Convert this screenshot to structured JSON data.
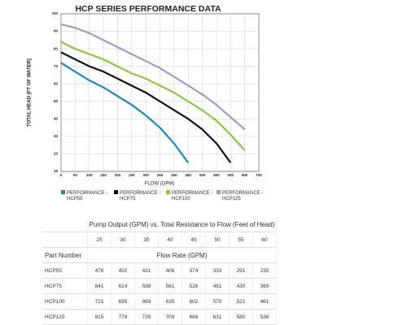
{
  "chart_data": {
    "type": "line",
    "title": "HCP SERIES PERFORMANCE DATA",
    "x_label": "FLOW (GPM)",
    "y_label": "TOTAL HEAD (FT OF WATER)",
    "xlim": [
      0,
      700
    ],
    "xticks": [
      0,
      50,
      100,
      150,
      200,
      250,
      300,
      350,
      400,
      450,
      500,
      550,
      600,
      650,
      700
    ],
    "ylim": [
      10,
      100
    ],
    "yticks": [
      10,
      20,
      30,
      40,
      50,
      60,
      70,
      80,
      90,
      100
    ],
    "grid": true,
    "series": [
      {
        "name": "PERFORMANCE - HCP55",
        "color": "#1b87c1",
        "x": [
          0,
          50,
          100,
          150,
          200,
          250,
          300,
          350,
          400,
          450
        ],
        "values": [
          72,
          67,
          62,
          58,
          53,
          48,
          42,
          35,
          26,
          15
        ]
      },
      {
        "name": "PERFORMANCE - HCP75",
        "color": "#111111",
        "x": [
          0,
          50,
          100,
          150,
          200,
          250,
          300,
          350,
          400,
          450,
          500,
          550,
          600
        ],
        "values": [
          78,
          74,
          70,
          67,
          63,
          59,
          55,
          50,
          45,
          40,
          34,
          26,
          15
        ]
      },
      {
        "name": "PERFORMANCE - HCP100",
        "color": "#8dc63f",
        "x": [
          0,
          50,
          100,
          150,
          200,
          250,
          300,
          350,
          400,
          450,
          500,
          550,
          600,
          650
        ],
        "values": [
          84,
          80,
          77,
          74,
          70,
          66,
          63,
          59,
          55,
          50,
          45,
          39,
          31,
          22
        ]
      },
      {
        "name": "PERFORMANCE - HCP125",
        "color": "#9a9acb",
        "x": [
          0,
          50,
          100,
          150,
          200,
          250,
          300,
          350,
          400,
          450,
          500,
          550,
          600,
          650
        ],
        "values": [
          94,
          92,
          89,
          85,
          81,
          77,
          73,
          69,
          64,
          59,
          54,
          48,
          41,
          34
        ]
      }
    ]
  },
  "table": {
    "title": "Pump Output (GPM) vs. Total Resistance to Flow (Feet of Head)",
    "head_values": [
      25,
      30,
      35,
      40,
      45,
      50,
      55,
      60
    ],
    "part_header": "Part Number",
    "group_label": "Flow Rate (GPM)",
    "rows": [
      [
        "HCP55",
        476,
        450,
        431,
        406,
        374,
        333,
        291,
        235
      ],
      [
        "HCP75",
        641,
        614,
        588,
        561,
        526,
        481,
        430,
        369
      ],
      [
        "HCP100",
        721,
        695,
        669,
        635,
        602,
        570,
        521,
        461
      ],
      [
        "HCP125",
        815,
        778,
        739,
        709,
        668,
        631,
        580,
        536
      ]
    ]
  }
}
